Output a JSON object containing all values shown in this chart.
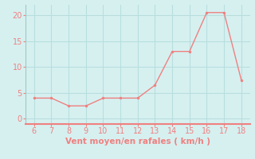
{
  "x": [
    6,
    7,
    8,
    9,
    10,
    11,
    12,
    13,
    14,
    15,
    16,
    17,
    18
  ],
  "y": [
    4,
    4,
    2.5,
    2.5,
    4,
    4,
    4,
    6.5,
    13,
    13,
    20.5,
    20.5,
    7.5
  ],
  "xlim": [
    5.5,
    18.5
  ],
  "ylim": [
    -1,
    22
  ],
  "xticks": [
    6,
    7,
    8,
    9,
    10,
    11,
    12,
    13,
    14,
    15,
    16,
    17,
    18
  ],
  "yticks": [
    0,
    5,
    10,
    15,
    20
  ],
  "xlabel": "Vent moyen/en rafales ( km/h )",
  "line_color": "#f08080",
  "marker_color": "#f08080",
  "bg_color": "#d6f0f0",
  "grid_color": "#b8dede",
  "spine_color": "#a0c8c8",
  "axis_color": "#f08080",
  "tick_color": "#f08080",
  "label_color": "#f08080",
  "font_size_label": 7.5,
  "font_size_tick": 7
}
